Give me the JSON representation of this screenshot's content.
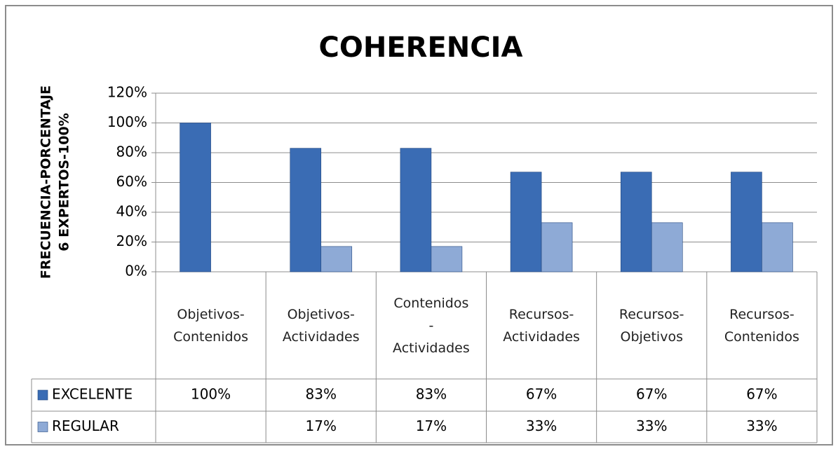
{
  "chart_data": {
    "type": "bar",
    "title": "COHERENCIA",
    "y_label": [
      "FRECUENCIA-PORCENTAJE",
      "6 EXPERTOS-100%"
    ],
    "categories": [
      "Objetivos-Contenidos",
      "Objetivos-Actividades",
      "Contenidos-Actividades",
      "Recursos-Actividades",
      "Recursos-Objetivos",
      "Recursos-Contenidos"
    ],
    "series": [
      {
        "name": "EXCELENTE",
        "color": "#3a6cb4",
        "values": [
          100,
          83,
          83,
          67,
          67,
          67
        ],
        "value_labels": [
          "100%",
          "83%",
          "83%",
          "67%",
          "67%",
          "67%"
        ]
      },
      {
        "name": "REGULAR",
        "color": "#8eaad6",
        "values": [
          null,
          17,
          17,
          33,
          33,
          33
        ],
        "value_labels": [
          null,
          "17%",
          "17%",
          "33%",
          "33%",
          "33%"
        ]
      }
    ],
    "ylim": [
      0,
      120
    ],
    "yticks": [
      {
        "value": 0,
        "label": "0%"
      },
      {
        "value": 20,
        "label": "20%"
      },
      {
        "value": 40,
        "label": "40%"
      },
      {
        "value": 60,
        "label": "60%"
      },
      {
        "value": 80,
        "label": "80%"
      },
      {
        "value": 100,
        "label": "100%"
      },
      {
        "value": 120,
        "label": "120%"
      }
    ],
    "grid": true,
    "legend": "table"
  }
}
